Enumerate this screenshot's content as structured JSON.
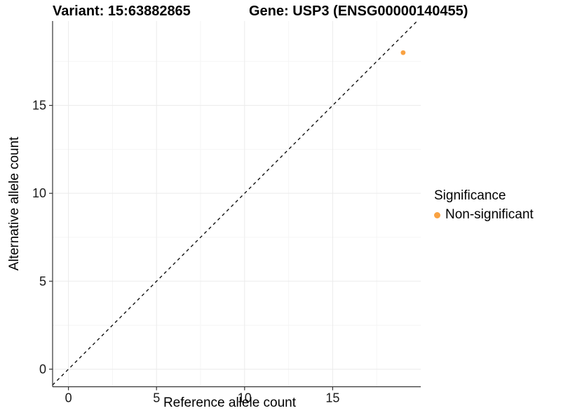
{
  "chart_data": {
    "type": "scatter",
    "title_left": "Variant: 15:63882865",
    "title_right": "Gene: USP3 (ENSG00000140455)",
    "xlabel": "Reference allele count",
    "ylabel": "Alternative allele count",
    "xlim": [
      -0.9,
      20.0
    ],
    "ylim": [
      -1.0,
      19.8
    ],
    "x_ticks": [
      0,
      5,
      10,
      15
    ],
    "y_ticks": [
      0,
      5,
      10,
      15
    ],
    "x_minor_ticks": [
      2.5,
      7.5,
      12.5,
      17.5
    ],
    "y_minor_ticks": [
      2.5,
      7.5,
      12.5,
      17.5
    ],
    "grid": true,
    "identity_line": {
      "slope": 1,
      "intercept": 0,
      "style": "dashed",
      "color": "#000000"
    },
    "series": [
      {
        "name": "Non-significant",
        "color": "#F9A242",
        "points": [
          {
            "x": 19,
            "y": 18
          }
        ]
      }
    ],
    "legend": {
      "title": "Significance",
      "position": "right",
      "items": [
        {
          "label": "Non-significant",
          "color": "#F9A242"
        }
      ]
    },
    "colors": {
      "major_grid": "#EBEBEB",
      "minor_grid": "#F5F5F5",
      "axis_line": "#333333",
      "tick_text": "#1a1a1a",
      "background": "#FFFFFF",
      "point": "#F9A242"
    }
  }
}
